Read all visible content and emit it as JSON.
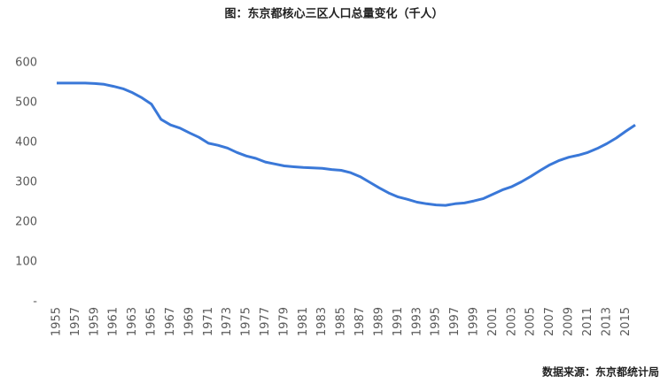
{
  "chart_data": {
    "type": "line",
    "title": "图：东京都核心三区人口总量变化（千人）",
    "source": "数据来源：东京都统计局",
    "x": [
      1955,
      1956,
      1957,
      1958,
      1959,
      1960,
      1961,
      1962,
      1963,
      1964,
      1965,
      1966,
      1967,
      1968,
      1969,
      1970,
      1971,
      1972,
      1973,
      1974,
      1975,
      1976,
      1977,
      1978,
      1979,
      1980,
      1981,
      1982,
      1983,
      1984,
      1985,
      1986,
      1987,
      1988,
      1989,
      1990,
      1991,
      1992,
      1993,
      1994,
      1995,
      1996,
      1997,
      1998,
      1999,
      2000,
      2001,
      2002,
      2003,
      2004,
      2005,
      2006,
      2007,
      2008,
      2009,
      2010,
      2011,
      2012,
      2013,
      2014,
      2015,
      2016
    ],
    "series": [
      {
        "name": "人口",
        "color": "#3a78d8",
        "values": [
          549,
          549,
          549,
          549,
          548,
          546,
          541,
          535,
          525,
          512,
          496,
          458,
          444,
          436,
          424,
          413,
          398,
          393,
          386,
          375,
          366,
          360,
          351,
          346,
          341,
          339,
          337,
          336,
          335,
          332,
          330,
          324,
          314,
          300,
          286,
          273,
          263,
          257,
          250,
          246,
          243,
          242,
          246,
          248,
          253,
          259,
          270,
          281,
          289,
          301,
          315,
          330,
          344,
          355,
          363,
          368,
          375,
          385,
          397,
          411,
          428,
          444
        ]
      }
    ],
    "xlim": [
      1955,
      2016
    ],
    "xticks": [
      1955,
      1957,
      1959,
      1961,
      1963,
      1965,
      1967,
      1969,
      1971,
      1973,
      1975,
      1977,
      1979,
      1981,
      1983,
      1985,
      1987,
      1989,
      1991,
      1993,
      1995,
      1997,
      1999,
      2001,
      2003,
      2005,
      2007,
      2009,
      2011,
      2013,
      2015
    ],
    "ylim": [
      0,
      600
    ],
    "yticks": [
      {
        "value": 0,
        "label": "-"
      },
      100,
      200,
      300,
      400,
      500,
      600
    ],
    "grid": false
  }
}
